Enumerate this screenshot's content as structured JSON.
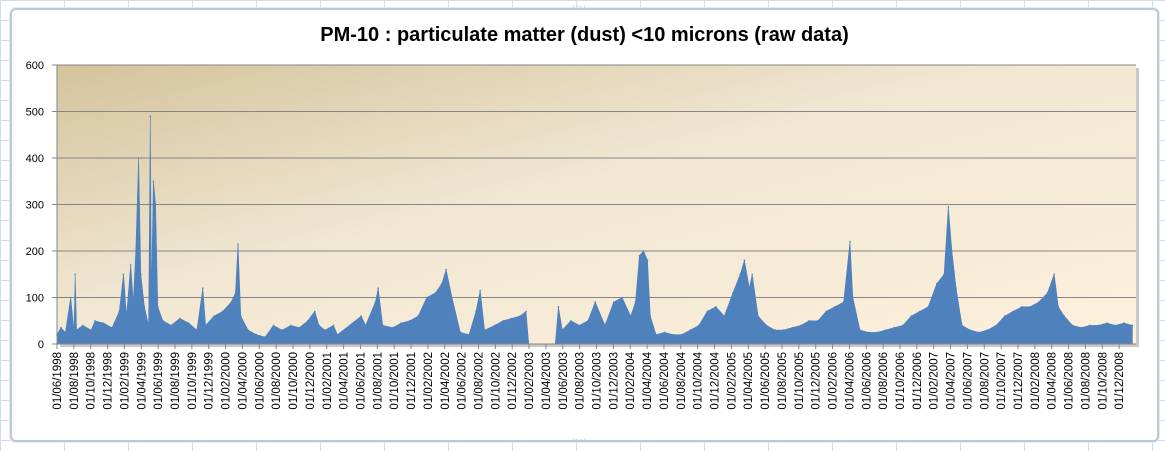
{
  "chart_data": {
    "type": "area",
    "title": "PM-10 : particulate matter (dust) <10 microns (raw data)",
    "xlabel": "",
    "ylabel": "",
    "ylim": [
      0,
      600
    ],
    "yticks": [
      "0",
      "100",
      "200",
      "300",
      "400",
      "500",
      "600"
    ],
    "xlim": [
      "1998-06-01",
      "2008-12-28"
    ],
    "grid": true,
    "legend": "none",
    "series_color": "#4f81bd",
    "xtick_labels": [
      "01/06/1998",
      "01/08/1998",
      "01/10/1998",
      "01/12/1998",
      "01/02/1999",
      "01/04/1999",
      "01/06/1999",
      "01/08/1999",
      "01/10/1999",
      "01/12/1999",
      "01/02/2000",
      "01/04/2000",
      "01/06/2000",
      "01/08/2000",
      "01/10/2000",
      "01/12/2000",
      "01/02/2001",
      "01/04/2001",
      "01/06/2001",
      "01/08/2001",
      "01/10/2001",
      "01/12/2001",
      "01/02/2002",
      "01/04/2002",
      "01/06/2002",
      "01/08/2002",
      "01/10/2002",
      "01/12/2002",
      "01/02/2003",
      "01/04/2003",
      "01/06/2003",
      "01/08/2003",
      "01/10/2003",
      "01/12/2003",
      "01/02/2004",
      "01/04/2004",
      "01/06/2004",
      "01/08/2004",
      "01/10/2004",
      "01/12/2004",
      "01/02/2005",
      "01/04/2005",
      "01/06/2005",
      "01/08/2005",
      "01/10/2005",
      "01/12/2005",
      "01/02/2006",
      "01/04/2006",
      "01/06/2006",
      "01/08/2006",
      "01/10/2006",
      "01/12/2006",
      "01/02/2007",
      "01/04/2007",
      "01/06/2007",
      "01/08/2007",
      "01/10/2007",
      "01/12/2007",
      "01/02/2008",
      "01/04/2008",
      "01/06/2008",
      "01/08/2008",
      "01/10/2008",
      "01/12/2008"
    ],
    "points": [
      [
        "1998-06-01",
        20
      ],
      [
        "1998-06-15",
        35
      ],
      [
        "1998-07-01",
        25
      ],
      [
        "1998-07-20",
        100
      ],
      [
        "1998-08-01",
        30
      ],
      [
        "1998-08-05",
        150
      ],
      [
        "1998-08-10",
        30
      ],
      [
        "1998-09-01",
        40
      ],
      [
        "1998-10-01",
        30
      ],
      [
        "1998-10-15",
        50
      ],
      [
        "1998-11-15",
        45
      ],
      [
        "1998-12-15",
        35
      ],
      [
        "1999-01-10",
        70
      ],
      [
        "1999-01-25",
        150
      ],
      [
        "1999-02-05",
        60
      ],
      [
        "1999-02-20",
        170
      ],
      [
        "1999-03-01",
        90
      ],
      [
        "1999-03-10",
        200
      ],
      [
        "1999-03-20",
        400
      ],
      [
        "1999-03-28",
        150
      ],
      [
        "1999-04-10",
        80
      ],
      [
        "1999-04-25",
        40
      ],
      [
        "1999-05-01",
        490
      ],
      [
        "1999-05-05",
        100
      ],
      [
        "1999-05-12",
        350
      ],
      [
        "1999-05-20",
        300
      ],
      [
        "1999-05-28",
        80
      ],
      [
        "1999-06-15",
        50
      ],
      [
        "1999-07-15",
        40
      ],
      [
        "1999-08-15",
        55
      ],
      [
        "1999-09-15",
        45
      ],
      [
        "1999-10-15",
        30
      ],
      [
        "1999-11-05",
        120
      ],
      [
        "1999-11-15",
        40
      ],
      [
        "1999-12-15",
        60
      ],
      [
        "2000-01-15",
        70
      ],
      [
        "2000-02-15",
        90
      ],
      [
        "2000-03-01",
        110
      ],
      [
        "2000-03-10",
        215
      ],
      [
        "2000-03-20",
        60
      ],
      [
        "2000-04-15",
        30
      ],
      [
        "2000-05-15",
        20
      ],
      [
        "2000-06-15",
        15
      ],
      [
        "2000-07-15",
        40
      ],
      [
        "2000-08-15",
        30
      ],
      [
        "2000-09-15",
        40
      ],
      [
        "2000-10-15",
        35
      ],
      [
        "2000-11-15",
        50
      ],
      [
        "2000-12-10",
        70
      ],
      [
        "2000-12-25",
        40
      ],
      [
        "2001-01-15",
        30
      ],
      [
        "2001-02-15",
        40
      ],
      [
        "2001-03-01",
        20
      ],
      [
        "2001-05-25",
        60
      ],
      [
        "2001-06-10",
        40
      ],
      [
        "2001-07-15",
        90
      ],
      [
        "2001-07-25",
        120
      ],
      [
        "2001-08-10",
        40
      ],
      [
        "2001-09-15",
        35
      ],
      [
        "2001-10-15",
        45
      ],
      [
        "2001-11-15",
        50
      ],
      [
        "2001-12-15",
        60
      ],
      [
        "2002-01-15",
        100
      ],
      [
        "2002-02-15",
        110
      ],
      [
        "2002-03-10",
        130
      ],
      [
        "2002-03-25",
        160
      ],
      [
        "2002-04-15",
        100
      ],
      [
        "2002-05-15",
        25
      ],
      [
        "2002-06-15",
        20
      ],
      [
        "2002-07-10",
        70
      ],
      [
        "2002-07-25",
        115
      ],
      [
        "2002-08-10",
        30
      ],
      [
        "2002-09-15",
        40
      ],
      [
        "2002-10-15",
        50
      ],
      [
        "2002-11-15",
        55
      ],
      [
        "2002-12-15",
        60
      ],
      [
        "2003-01-05",
        70
      ],
      [
        "2003-01-15",
        0
      ],
      [
        "2003-04-20",
        0
      ],
      [
        "2003-05-01",
        80
      ],
      [
        "2003-05-15",
        30
      ],
      [
        "2003-06-15",
        50
      ],
      [
        "2003-07-15",
        40
      ],
      [
        "2003-08-15",
        50
      ],
      [
        "2003-09-10",
        90
      ],
      [
        "2003-10-15",
        40
      ],
      [
        "2003-11-15",
        90
      ],
      [
        "2003-12-15",
        100
      ],
      [
        "2004-01-15",
        60
      ],
      [
        "2004-02-01",
        90
      ],
      [
        "2004-02-15",
        190
      ],
      [
        "2004-03-01",
        200
      ],
      [
        "2004-03-15",
        180
      ],
      [
        "2004-03-25",
        60
      ],
      [
        "2004-04-15",
        20
      ],
      [
        "2004-05-15",
        25
      ],
      [
        "2004-06-15",
        20
      ],
      [
        "2004-07-15",
        20
      ],
      [
        "2004-08-15",
        30
      ],
      [
        "2004-09-15",
        40
      ],
      [
        "2004-10-15",
        70
      ],
      [
        "2004-11-15",
        80
      ],
      [
        "2004-12-15",
        60
      ],
      [
        "2005-01-15",
        110
      ],
      [
        "2005-02-10",
        150
      ],
      [
        "2005-02-25",
        180
      ],
      [
        "2005-03-15",
        120
      ],
      [
        "2005-03-25",
        150
      ],
      [
        "2005-04-15",
        60
      ],
      [
        "2005-05-15",
        40
      ],
      [
        "2005-06-15",
        30
      ],
      [
        "2005-07-15",
        30
      ],
      [
        "2005-08-15",
        35
      ],
      [
        "2005-09-15",
        40
      ],
      [
        "2005-10-15",
        50
      ],
      [
        "2005-11-15",
        50
      ],
      [
        "2005-12-15",
        70
      ],
      [
        "2006-01-15",
        80
      ],
      [
        "2006-02-15",
        90
      ],
      [
        "2006-03-10",
        220
      ],
      [
        "2006-03-20",
        100
      ],
      [
        "2006-04-15",
        30
      ],
      [
        "2006-05-15",
        25
      ],
      [
        "2006-06-15",
        25
      ],
      [
        "2006-07-15",
        30
      ],
      [
        "2006-08-15",
        35
      ],
      [
        "2006-09-15",
        40
      ],
      [
        "2006-10-15",
        60
      ],
      [
        "2006-11-15",
        70
      ],
      [
        "2006-12-15",
        80
      ],
      [
        "2007-01-15",
        130
      ],
      [
        "2007-02-10",
        150
      ],
      [
        "2007-02-25",
        295
      ],
      [
        "2007-03-10",
        200
      ],
      [
        "2007-03-25",
        120
      ],
      [
        "2007-04-15",
        40
      ],
      [
        "2007-05-15",
        30
      ],
      [
        "2007-06-15",
        25
      ],
      [
        "2007-07-15",
        30
      ],
      [
        "2007-08-15",
        40
      ],
      [
        "2007-09-15",
        60
      ],
      [
        "2007-10-15",
        70
      ],
      [
        "2007-11-15",
        80
      ],
      [
        "2007-12-15",
        80
      ],
      [
        "2008-01-15",
        90
      ],
      [
        "2008-02-15",
        110
      ],
      [
        "2008-03-10",
        150
      ],
      [
        "2008-03-25",
        80
      ],
      [
        "2008-04-15",
        60
      ],
      [
        "2008-05-15",
        40
      ],
      [
        "2008-06-15",
        35
      ],
      [
        "2008-07-15",
        40
      ],
      [
        "2008-08-15",
        40
      ],
      [
        "2008-09-15",
        45
      ],
      [
        "2008-10-15",
        40
      ],
      [
        "2008-11-15",
        45
      ],
      [
        "2008-12-15",
        40
      ]
    ]
  }
}
